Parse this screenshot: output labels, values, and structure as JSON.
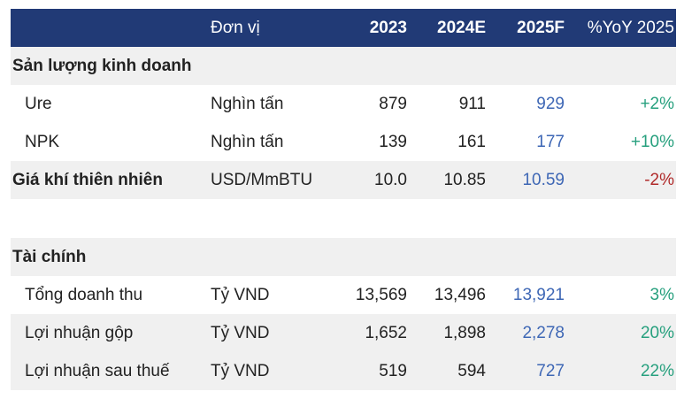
{
  "header": {
    "label": "",
    "unit": "Đơn vị",
    "y2023": "2023",
    "y2024": "2024E",
    "y2025": "2025F",
    "yoy": "%YoY 2025"
  },
  "section1": {
    "title": "Sản lượng kinh doanh"
  },
  "rows1": [
    {
      "label": "Ure",
      "unit": "Nghìn tấn",
      "y2023": "879",
      "y2024": "911",
      "y2025": "929",
      "yoy": "+2%"
    },
    {
      "label": "NPK",
      "unit": "Nghìn tấn",
      "y2023": "139",
      "y2024": "161",
      "y2025": "177",
      "yoy": "+10%"
    },
    {
      "label": "Giá khí thiên nhiên",
      "unit": "USD/MmBTU",
      "y2023": "10.0",
      "y2024": "10.85",
      "y2025": "10.59",
      "yoy": "-2%"
    }
  ],
  "section2": {
    "title": "Tài chính"
  },
  "rows2": [
    {
      "label": "Tổng doanh thu",
      "unit": "Tỷ VND",
      "y2023": "13,569",
      "y2024": "13,496",
      "y2025": "13,921",
      "yoy": "3%"
    },
    {
      "label": "Lợi nhuận gộp",
      "unit": "Tỷ VND",
      "y2023": "1,652",
      "y2024": "1,898",
      "y2025": "2,278",
      "yoy": "20%"
    },
    {
      "label": "Lợi nhuận sau thuế",
      "unit": "Tỷ VND",
      "y2023": "519",
      "y2024": "594",
      "y2025": "727",
      "yoy": "22%"
    }
  ],
  "colors": {
    "header_bg": "#213a76",
    "forecast": "#3e67b5",
    "positive": "#27a07e",
    "negative": "#b02a2a",
    "shade": "#f0f0f0"
  }
}
